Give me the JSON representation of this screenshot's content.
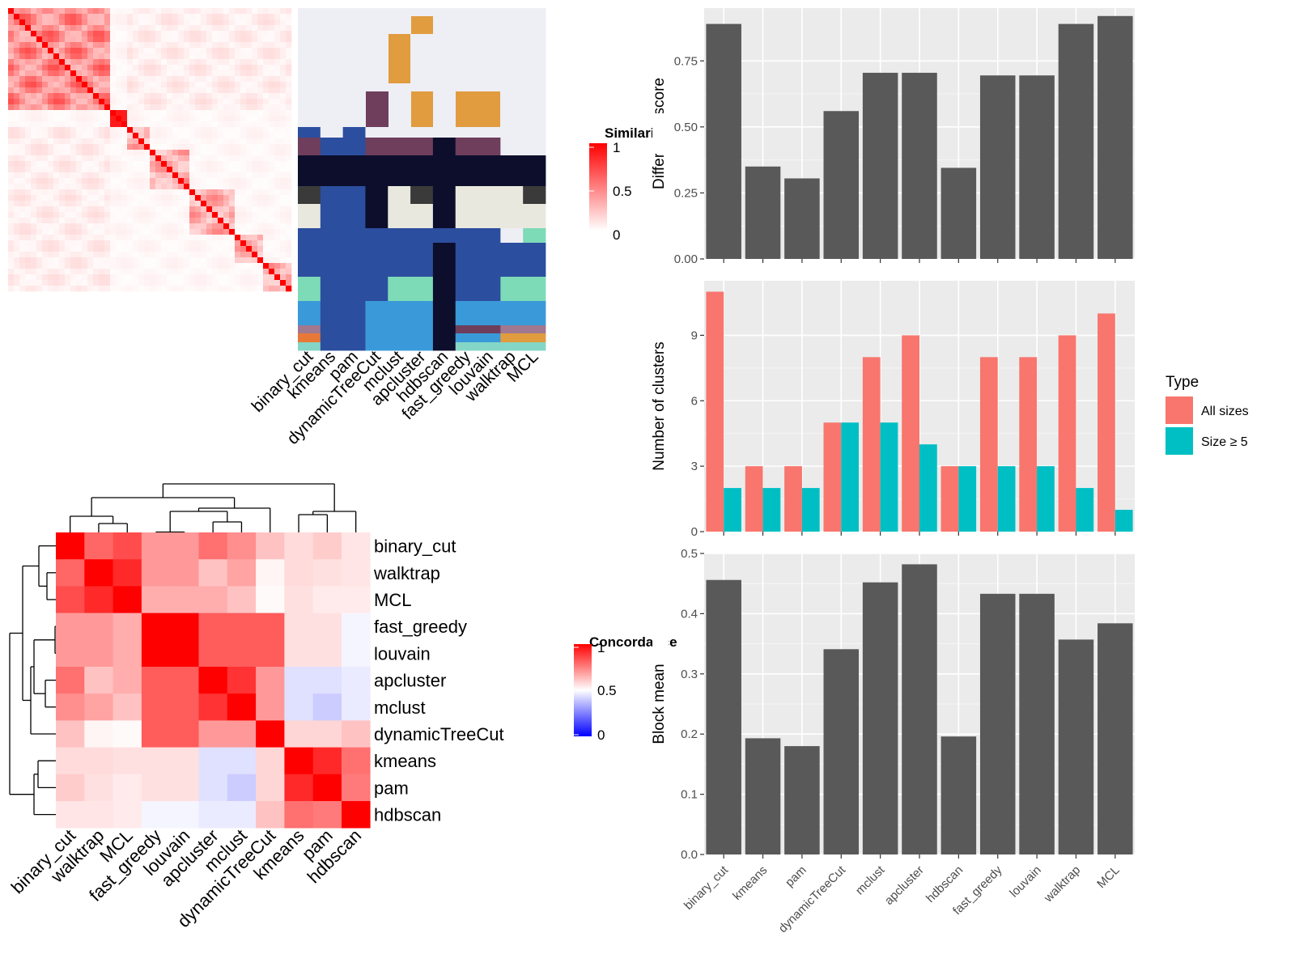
{
  "colors": {
    "heat_low": "#ffffff",
    "heat_high": "#ff0000",
    "concord_low": "#0000ff",
    "concord_mid": "#ffffff",
    "concord_high": "#ff0000",
    "bar_fill": "#595959",
    "all_sizes": "#f8766d",
    "size_ge5": "#00bfc4",
    "panel_bg": "#ebebeb",
    "cluster_palette": [
      "#eeeef5",
      "#e09c3f",
      "#2c4e9e",
      "#6e3e5c",
      "#0c0e2c",
      "#3a3a3a",
      "#e8e8de",
      "#7ddbb8",
      "#3a9ad9",
      "#a07890",
      "#e87838",
      "#84d6c6"
    ]
  },
  "similarity_heatmap": {
    "legend_title": "Similarity",
    "legend_ticks": [
      "1",
      "0.5",
      "0"
    ],
    "methods": [
      "binary_cut",
      "kmeans",
      "pam",
      "dynamicTreeCut",
      "mclust",
      "apcluster",
      "hdbscan",
      "fast_greedy",
      "louvain",
      "walktrap",
      "MCL"
    ]
  },
  "concordance_heatmap": {
    "legend_title": "Concordance",
    "legend_ticks": [
      "1",
      "0.5",
      "0"
    ],
    "row_labels": [
      "binary_cut",
      "walktrap",
      "MCL",
      "fast_greedy",
      "louvain",
      "apcluster",
      "mclust",
      "dynamicTreeCut",
      "kmeans",
      "pam",
      "hdbscan"
    ],
    "col_labels": [
      "binary_cut",
      "walktrap",
      "MCL",
      "fast_greedy",
      "louvain",
      "apcluster",
      "mclust",
      "dynamicTreeCut",
      "kmeans",
      "pam",
      "hdbscan"
    ],
    "matrix": [
      [
        1.0,
        0.8,
        0.85,
        0.7,
        0.7,
        0.78,
        0.72,
        0.62,
        0.57,
        0.6,
        0.55
      ],
      [
        0.8,
        1.0,
        0.92,
        0.7,
        0.7,
        0.62,
        0.68,
        0.52,
        0.57,
        0.56,
        0.55
      ],
      [
        0.85,
        0.92,
        1.0,
        0.66,
        0.66,
        0.66,
        0.62,
        0.51,
        0.56,
        0.54,
        0.54
      ],
      [
        0.7,
        0.7,
        0.66,
        1.0,
        1.0,
        0.82,
        0.82,
        0.82,
        0.56,
        0.56,
        0.48
      ],
      [
        0.7,
        0.7,
        0.66,
        1.0,
        1.0,
        0.82,
        0.82,
        0.82,
        0.56,
        0.56,
        0.48
      ],
      [
        0.78,
        0.62,
        0.66,
        0.82,
        0.82,
        1.0,
        0.9,
        0.7,
        0.44,
        0.44,
        0.46
      ],
      [
        0.72,
        0.68,
        0.62,
        0.82,
        0.82,
        0.9,
        1.0,
        0.7,
        0.44,
        0.4,
        0.46
      ],
      [
        0.62,
        0.52,
        0.51,
        0.82,
        0.82,
        0.7,
        0.7,
        1.0,
        0.58,
        0.58,
        0.62
      ],
      [
        0.57,
        0.57,
        0.56,
        0.56,
        0.56,
        0.44,
        0.44,
        0.58,
        1.0,
        0.92,
        0.78
      ],
      [
        0.6,
        0.56,
        0.54,
        0.56,
        0.56,
        0.44,
        0.4,
        0.58,
        0.92,
        1.0,
        0.76
      ],
      [
        0.55,
        0.55,
        0.54,
        0.48,
        0.48,
        0.46,
        0.46,
        0.62,
        0.78,
        0.76,
        1.0
      ]
    ]
  },
  "chart_data": [
    {
      "type": "bar",
      "categories": [
        "binary_cut",
        "kmeans",
        "pam",
        "dynamicTreeCut",
        "mclust",
        "apcluster",
        "hdbscan",
        "fast_greedy",
        "louvain",
        "walktrap",
        "MCL"
      ],
      "values": [
        0.89,
        0.35,
        0.305,
        0.56,
        0.705,
        0.705,
        0.345,
        0.695,
        0.695,
        0.89,
        0.92
      ],
      "ylabel": "Difference score",
      "ylim": [
        0,
        0.95
      ],
      "yticks": [
        0.0,
        0.25,
        0.5,
        0.75
      ],
      "ytick_labels": [
        "0.00",
        "0.25",
        "0.50",
        "0.75"
      ],
      "grid": true
    },
    {
      "type": "bar",
      "categories": [
        "binary_cut",
        "kmeans",
        "pam",
        "dynamicTreeCut",
        "mclust",
        "apcluster",
        "hdbscan",
        "fast_greedy",
        "louvain",
        "walktrap",
        "MCL"
      ],
      "series": [
        {
          "name": "All sizes",
          "values": [
            11,
            3,
            3,
            5,
            8,
            9,
            3,
            8,
            8,
            9,
            10
          ]
        },
        {
          "name": "Size ≥ 5",
          "values": [
            2,
            2,
            2,
            5,
            5,
            4,
            3,
            3,
            3,
            2,
            1
          ]
        }
      ],
      "ylabel": "Number of clusters",
      "ylim": [
        0,
        11.5
      ],
      "yticks": [
        0,
        3,
        6,
        9
      ],
      "ytick_labels": [
        "0",
        "3",
        "6",
        "9"
      ],
      "legend_title": "Type",
      "legend_position": "right",
      "grid": true
    },
    {
      "type": "bar",
      "categories": [
        "binary_cut",
        "kmeans",
        "pam",
        "dynamicTreeCut",
        "mclust",
        "apcluster",
        "hdbscan",
        "fast_greedy",
        "louvain",
        "walktrap",
        "MCL"
      ],
      "values": [
        0.456,
        0.193,
        0.18,
        0.341,
        0.452,
        0.482,
        0.196,
        0.433,
        0.433,
        0.357,
        0.384
      ],
      "ylabel": "Block mean",
      "ylim": [
        0,
        0.5
      ],
      "yticks": [
        0.0,
        0.1,
        0.2,
        0.3,
        0.4,
        0.5
      ],
      "ytick_labels": [
        "0.0",
        "0.1",
        "0.2",
        "0.3",
        "0.4",
        "0.5"
      ],
      "grid": true
    }
  ]
}
